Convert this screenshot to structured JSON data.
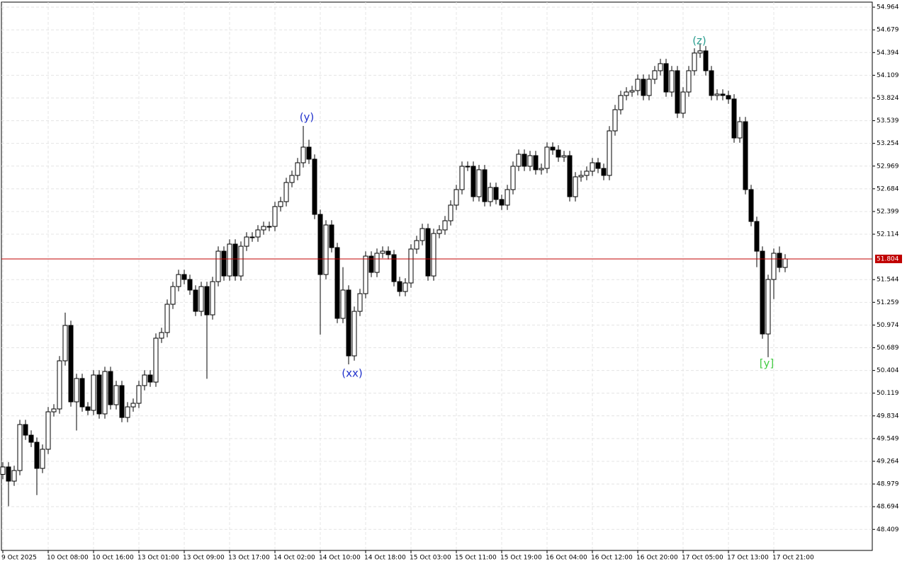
{
  "chart_data": {
    "type": "candlestick",
    "categories": [
      "9 Oct 2025",
      null,
      null,
      null,
      null,
      null,
      null,
      null,
      "10 Oct 08:00",
      null,
      null,
      null,
      null,
      null,
      null,
      null,
      "10 Oct 16:00",
      null,
      null,
      null,
      null,
      null,
      null,
      null,
      "13 Oct 01:00",
      null,
      null,
      null,
      null,
      null,
      null,
      null,
      "13 Oct 09:00",
      null,
      null,
      null,
      null,
      null,
      null,
      null,
      "13 Oct 17:00",
      null,
      null,
      null,
      null,
      null,
      null,
      null,
      "14 Oct 02:00",
      null,
      null,
      null,
      null,
      null,
      null,
      null,
      "14 Oct 10:00",
      null,
      null,
      null,
      null,
      null,
      null,
      null,
      "14 Oct 18:00",
      null,
      null,
      null,
      null,
      null,
      null,
      null,
      "15 Oct 03:00",
      null,
      null,
      null,
      null,
      null,
      null,
      null,
      "15 Oct 11:00",
      null,
      null,
      null,
      null,
      null,
      null,
      null,
      "15 Oct 19:00",
      null,
      null,
      null,
      null,
      null,
      null,
      null,
      "16 Oct 04:00",
      null,
      null,
      null,
      null,
      null,
      null,
      null,
      "16 Oct 12:00",
      null,
      null,
      null,
      null,
      null,
      null,
      null,
      "16 Oct 20:00",
      null,
      null,
      null,
      null,
      null,
      null,
      null,
      "17 Oct 05:00",
      null,
      null,
      null,
      null,
      null,
      null,
      null,
      "17 Oct 13:00",
      null,
      null,
      null,
      null,
      null,
      null,
      null,
      "17 Oct 21:00",
      null,
      null
    ],
    "open": [
      49.1,
      49.193,
      49.015,
      49.148,
      49.725,
      49.592,
      49.503,
      49.175,
      49.415,
      49.885,
      49.921,
      50.525,
      50.969,
      50.01,
      50.303,
      49.947,
      49.903,
      50.347,
      49.859,
      50.391,
      49.974,
      50.214,
      49.814,
      49.947,
      49.992,
      50.214,
      50.347,
      50.258,
      50.809,
      50.88,
      51.235,
      51.457,
      51.608,
      51.546,
      51.413,
      51.146,
      51.457,
      51.102,
      51.519,
      51.901,
      51.59,
      51.99,
      51.59,
      51.963,
      52.079,
      52.079,
      52.168,
      52.212,
      52.212,
      52.461,
      52.523,
      52.763,
      52.852,
      53.011,
      53.207,
      53.056,
      52.363,
      51.608,
      52.23,
      51.946,
      51.058,
      51.413,
      50.587,
      51.146,
      51.368,
      51.839,
      51.635,
      51.875,
      51.901,
      51.857,
      51.519,
      51.395,
      51.502,
      51.928,
      52.034,
      52.185,
      51.59,
      52.123,
      52.168,
      52.283,
      52.479,
      52.674,
      52.967,
      52.967,
      52.585,
      52.923,
      52.523,
      52.701,
      52.55,
      52.479,
      52.674,
      52.967,
      53.118,
      52.967,
      53.1,
      52.923,
      52.94,
      53.207,
      53.171,
      53.082,
      53.1,
      52.585,
      52.834,
      52.852,
      52.905,
      53.011,
      52.94,
      52.852,
      53.411,
      53.677,
      53.855,
      53.899,
      53.917,
      54.059,
      53.855,
      54.059,
      54.166,
      54.255,
      53.899,
      54.166,
      53.633,
      53.899,
      54.166,
      54.388,
      54.415,
      54.166,
      53.855,
      53.873,
      53.855,
      53.811,
      53.322,
      53.526,
      52.674,
      52.274,
      51.901,
      50.862,
      51.546,
      51.875,
      51.697
    ],
    "high": [
      49.253,
      49.253,
      49.208,
      49.785,
      49.785,
      49.652,
      49.563,
      49.475,
      49.945,
      49.981,
      50.585,
      51.13,
      51.029,
      50.363,
      50.363,
      50.007,
      50.407,
      50.407,
      50.451,
      50.451,
      50.274,
      50.274,
      50.007,
      50.052,
      50.274,
      50.407,
      50.407,
      50.869,
      50.94,
      51.295,
      51.517,
      51.668,
      51.668,
      51.606,
      51.473,
      51.517,
      51.517,
      51.579,
      51.961,
      51.961,
      52.05,
      52.05,
      52.023,
      52.139,
      52.139,
      52.228,
      52.272,
      52.272,
      52.521,
      52.583,
      52.823,
      52.912,
      53.071,
      53.473,
      53.3,
      53.116,
      52.423,
      52.29,
      52.29,
      52.006,
      51.7,
      51.473,
      51.206,
      51.428,
      51.899,
      51.899,
      51.935,
      51.961,
      51.961,
      51.917,
      51.579,
      51.562,
      51.988,
      52.094,
      52.245,
      52.245,
      52.183,
      52.228,
      52.343,
      52.539,
      52.734,
      53.027,
      53.027,
      53.027,
      52.983,
      52.983,
      52.761,
      52.761,
      52.61,
      52.734,
      53.027,
      53.178,
      53.178,
      53.16,
      53.16,
      53.0,
      53.267,
      53.267,
      53.231,
      53.16,
      53.16,
      52.894,
      52.912,
      52.965,
      53.071,
      53.071,
      53.0,
      53.471,
      53.737,
      53.915,
      53.959,
      53.977,
      54.119,
      54.119,
      54.119,
      54.226,
      54.315,
      54.315,
      54.226,
      54.226,
      53.959,
      54.226,
      54.448,
      54.5,
      54.475,
      54.226,
      53.933,
      53.933,
      53.915,
      53.871,
      53.586,
      53.586,
      52.734,
      52.334,
      51.961,
      51.606,
      51.935,
      51.96,
      51.864
    ],
    "low": [
      49.04,
      48.7,
      48.955,
      49.088,
      49.532,
      49.443,
      48.84,
      49.115,
      49.355,
      49.825,
      49.861,
      50.465,
      49.95,
      49.65,
      49.887,
      49.843,
      49.843,
      49.799,
      49.799,
      49.914,
      49.914,
      49.754,
      49.754,
      49.887,
      49.932,
      50.154,
      50.198,
      50.198,
      50.749,
      50.82,
      51.175,
      51.397,
      51.486,
      51.353,
      51.086,
      51.086,
      50.3,
      51.042,
      51.459,
      51.53,
      51.53,
      51.53,
      51.53,
      51.903,
      52.019,
      52.019,
      52.108,
      52.152,
      52.152,
      52.401,
      52.463,
      52.703,
      52.792,
      52.951,
      52.996,
      52.303,
      50.854,
      51.548,
      51.886,
      50.998,
      50.998,
      50.48,
      50.527,
      51.086,
      51.308,
      51.575,
      51.575,
      51.815,
      51.797,
      51.459,
      51.335,
      51.335,
      51.442,
      51.868,
      51.974,
      51.53,
      51.53,
      52.063,
      52.108,
      52.223,
      52.419,
      52.614,
      52.907,
      52.525,
      52.525,
      52.463,
      52.463,
      52.49,
      52.419,
      52.419,
      52.614,
      52.907,
      52.907,
      52.907,
      52.863,
      52.863,
      52.88,
      53.111,
      53.022,
      53.022,
      52.525,
      52.525,
      52.774,
      52.792,
      52.845,
      52.88,
      52.792,
      52.792,
      53.351,
      53.617,
      53.795,
      53.839,
      53.857,
      53.795,
      53.795,
      53.999,
      54.106,
      53.839,
      53.839,
      53.573,
      53.573,
      53.839,
      54.106,
      54.328,
      54.106,
      53.795,
      53.795,
      53.795,
      53.751,
      53.262,
      53.262,
      52.614,
      52.214,
      51.7,
      50.802,
      50.57,
      51.3,
      51.637,
      51.637
    ],
    "close": [
      49.193,
      49.015,
      49.148,
      49.725,
      49.592,
      49.503,
      49.175,
      49.415,
      49.885,
      49.921,
      50.525,
      50.969,
      50.01,
      50.303,
      49.947,
      49.903,
      50.347,
      49.859,
      50.391,
      49.974,
      50.214,
      49.814,
      49.947,
      49.992,
      50.214,
      50.347,
      50.258,
      50.809,
      50.88,
      51.235,
      51.457,
      51.608,
      51.546,
      51.413,
      51.146,
      51.457,
      51.102,
      51.519,
      51.901,
      51.59,
      51.99,
      51.59,
      51.963,
      52.079,
      52.079,
      52.168,
      52.212,
      52.212,
      52.461,
      52.523,
      52.763,
      52.852,
      53.011,
      53.207,
      53.056,
      52.363,
      51.608,
      52.23,
      51.946,
      51.058,
      51.413,
      50.587,
      51.146,
      51.368,
      51.839,
      51.635,
      51.875,
      51.901,
      51.857,
      51.519,
      51.395,
      51.502,
      51.928,
      52.034,
      52.185,
      51.59,
      52.123,
      52.168,
      52.283,
      52.479,
      52.674,
      52.967,
      52.967,
      52.585,
      52.923,
      52.523,
      52.701,
      52.55,
      52.479,
      52.674,
      52.967,
      53.118,
      52.967,
      53.1,
      52.923,
      52.94,
      53.207,
      53.171,
      53.082,
      53.1,
      52.585,
      52.834,
      52.852,
      52.905,
      53.011,
      52.94,
      52.852,
      53.411,
      53.677,
      53.855,
      53.899,
      53.917,
      54.059,
      53.855,
      54.059,
      54.166,
      54.255,
      53.899,
      54.166,
      53.633,
      53.899,
      54.166,
      54.388,
      54.415,
      54.166,
      53.855,
      53.873,
      53.855,
      53.811,
      53.322,
      53.526,
      52.674,
      52.274,
      51.901,
      50.862,
      51.546,
      51.875,
      51.697,
      51.804
    ],
    "up_color": "#ffffff",
    "down_color": "#000000",
    "ylim": [
      48.145,
      55.027
    ],
    "yticks": [
      {
        "value": 54.964,
        "label": "54.964"
      },
      {
        "value": 54.679,
        "label": "54.679"
      },
      {
        "value": 54.394,
        "label": "54.394"
      },
      {
        "value": 54.109,
        "label": "54.109"
      },
      {
        "value": 53.824,
        "label": "53.824"
      },
      {
        "value": 53.539,
        "label": "53.539"
      },
      {
        "value": 53.254,
        "label": "53.254"
      },
      {
        "value": 52.969,
        "label": "52.969"
      },
      {
        "value": 52.684,
        "label": "52.684"
      },
      {
        "value": 52.399,
        "label": "52.399"
      },
      {
        "value": 52.114,
        "label": "52.114"
      },
      {
        "value": 51.544,
        "label": "51.544"
      },
      {
        "value": 51.259,
        "label": "51.259"
      },
      {
        "value": 50.974,
        "label": "50.974"
      },
      {
        "value": 50.689,
        "label": "50.689"
      },
      {
        "value": 50.404,
        "label": "50.404"
      },
      {
        "value": 50.119,
        "label": "50.119"
      },
      {
        "value": 49.834,
        "label": "49.834"
      },
      {
        "value": 49.549,
        "label": "49.549"
      },
      {
        "value": 49.264,
        "label": "49.264"
      },
      {
        "value": 48.979,
        "label": "48.979"
      },
      {
        "value": 48.694,
        "label": "48.694"
      },
      {
        "value": 48.409,
        "label": "48.409"
      }
    ],
    "grid": true,
    "current_price": {
      "value": 51.804,
      "label": "51.804",
      "color": "#c00000"
    },
    "annotations": [
      {
        "text": "(y)",
        "color": "#2233cc"
      },
      {
        "text": "(xx)",
        "color": "#2233cc"
      },
      {
        "text": "(z)",
        "color": "#2a9d8f"
      },
      {
        "text": "[y]",
        "color": "#44cc44"
      }
    ]
  }
}
